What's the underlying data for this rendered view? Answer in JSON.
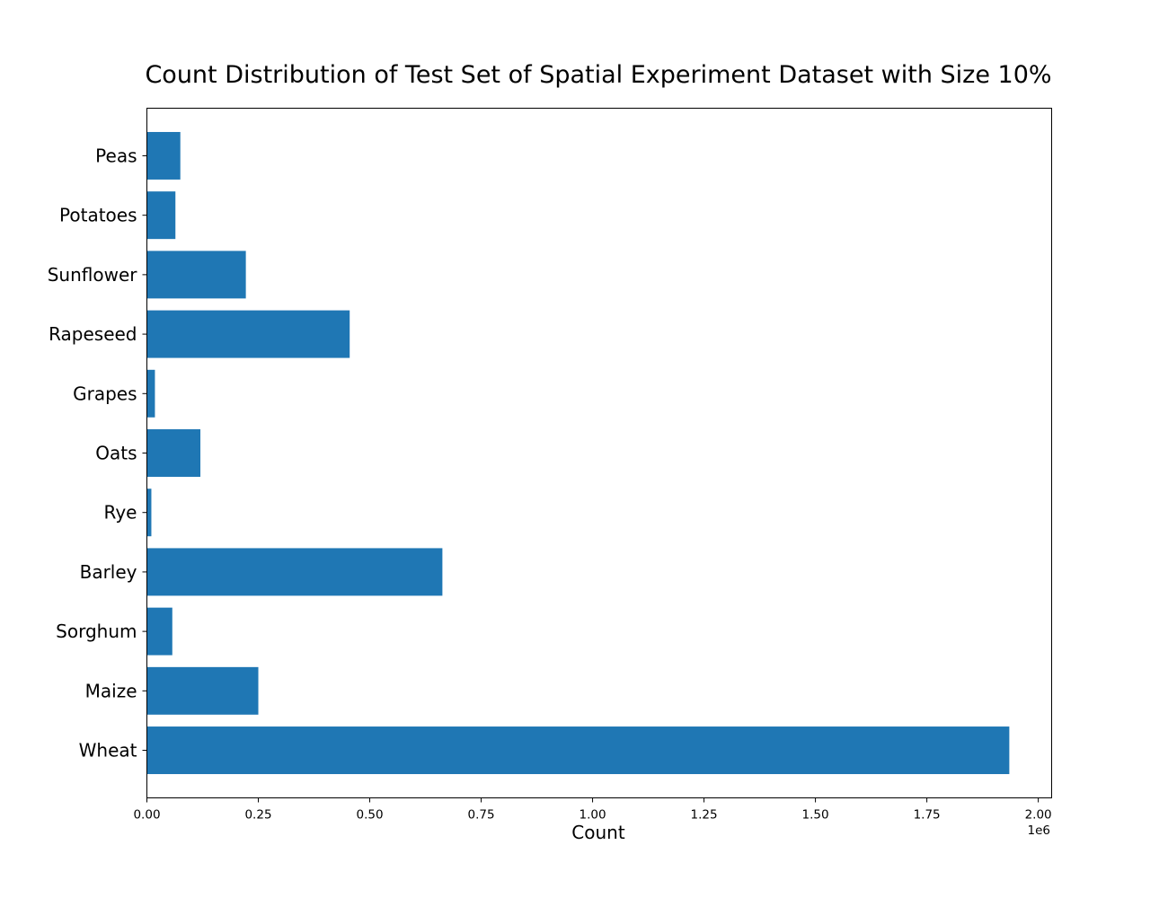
{
  "chart_data": {
    "type": "bar",
    "orientation": "horizontal",
    "title": "Count Distribution of Test Set of Spatial Experiment Dataset with Size 10%",
    "xlabel": "Count",
    "ylabel": "",
    "x_offset_label": "1e6",
    "xlim": [
      0,
      2.03
    ],
    "x_ticks": [
      {
        "value": 0.0,
        "label": "0.00"
      },
      {
        "value": 0.25,
        "label": "0.25"
      },
      {
        "value": 0.5,
        "label": "0.50"
      },
      {
        "value": 0.75,
        "label": "0.75"
      },
      {
        "value": 1.0,
        "label": "1.00"
      },
      {
        "value": 1.25,
        "label": "1.25"
      },
      {
        "value": 1.5,
        "label": "1.50"
      },
      {
        "value": 1.75,
        "label": "1.75"
      },
      {
        "value": 2.0,
        "label": "2.00"
      }
    ],
    "categories": [
      "Wheat",
      "Maize",
      "Sorghum",
      "Barley",
      "Rye",
      "Oats",
      "Grapes",
      "Rapeseed",
      "Sunflower",
      "Potatoes",
      "Peas"
    ],
    "values": [
      1935000,
      250000,
      57000,
      663000,
      10000,
      120000,
      18000,
      455000,
      222000,
      64000,
      75000
    ],
    "bar_color": "#1f77b4",
    "grid": false,
    "legend": "none"
  }
}
